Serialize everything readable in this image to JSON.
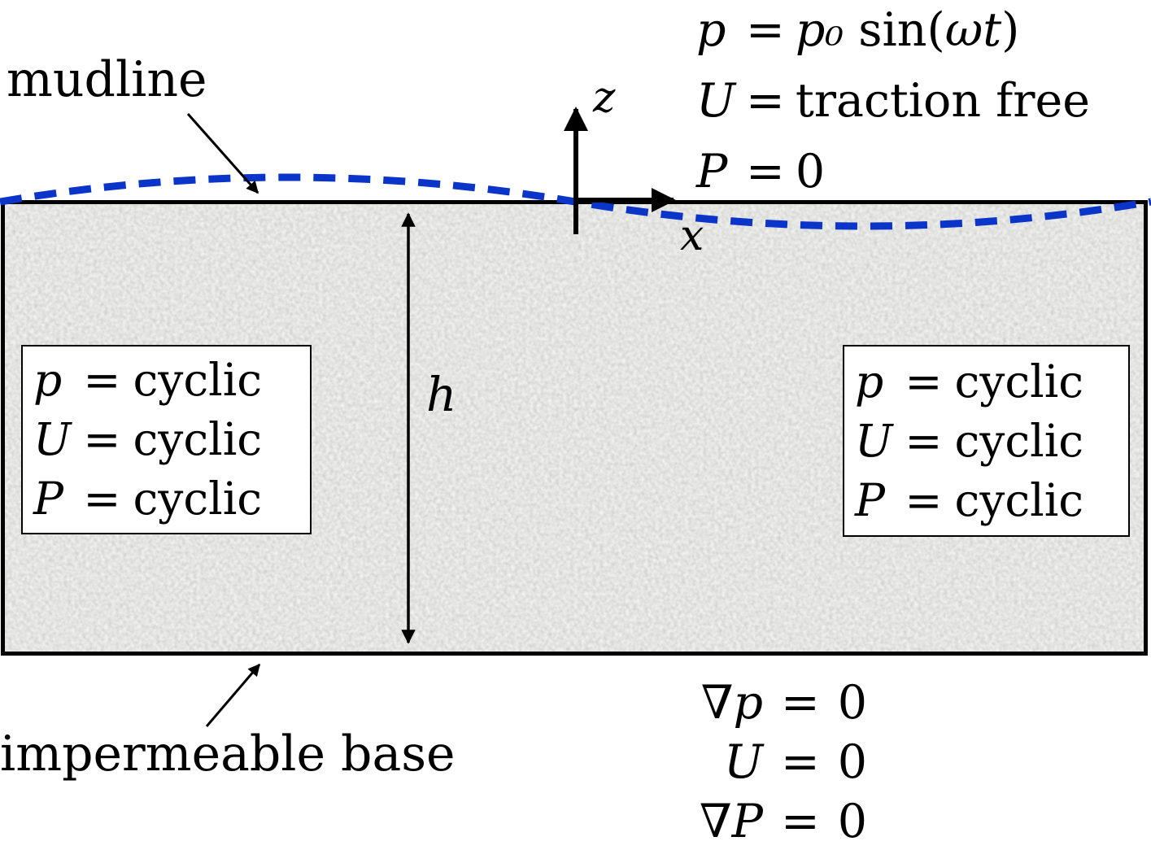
{
  "colors": {
    "wave_blue": "#0b35c9",
    "ink_black": "#000000",
    "sand_gray": "#c9c9c7",
    "box_white": "#ffffff"
  },
  "labels": {
    "mudline": "mudline",
    "impermeable_base": "impermeable base",
    "axis_z": "z",
    "axis_x": "x",
    "depth": "h"
  },
  "surface_bc": {
    "rows": [
      {
        "lhs": [
          {
            "t": "p",
            "i": 1
          }
        ],
        "eq": "=",
        "rhs": [
          {
            "t": "p₀",
            "i": 1
          },
          {
            "t": " sin(",
            "i": 0
          },
          {
            "t": "ωt",
            "i": 1
          },
          {
            "t": ")",
            "i": 0
          }
        ]
      },
      {
        "lhs": [
          {
            "t": "U",
            "i": 1
          }
        ],
        "eq": "=",
        "rhs": [
          {
            "t": "traction free",
            "i": 0
          }
        ]
      },
      {
        "lhs": [
          {
            "t": "P",
            "i": 1
          }
        ],
        "eq": "=",
        "rhs": [
          {
            "t": "0",
            "i": 0
          }
        ]
      }
    ]
  },
  "left_bc": {
    "rows": [
      {
        "lhs": [
          {
            "t": "p",
            "i": 1
          }
        ],
        "eq": "=",
        "rhs": [
          {
            "t": "cyclic",
            "i": 0
          }
        ]
      },
      {
        "lhs": [
          {
            "t": "U",
            "i": 1
          }
        ],
        "eq": "=",
        "rhs": [
          {
            "t": "cyclic",
            "i": 0
          }
        ]
      },
      {
        "lhs": [
          {
            "t": "P",
            "i": 1
          }
        ],
        "eq": "=",
        "rhs": [
          {
            "t": "cyclic",
            "i": 0
          }
        ]
      }
    ]
  },
  "right_bc": {
    "rows": [
      {
        "lhs": [
          {
            "t": "p",
            "i": 1
          }
        ],
        "eq": "=",
        "rhs": [
          {
            "t": "cyclic",
            "i": 0
          }
        ]
      },
      {
        "lhs": [
          {
            "t": "U",
            "i": 1
          }
        ],
        "eq": "=",
        "rhs": [
          {
            "t": "cyclic",
            "i": 0
          }
        ]
      },
      {
        "lhs": [
          {
            "t": "P",
            "i": 1
          }
        ],
        "eq": "=",
        "rhs": [
          {
            "t": "cyclic",
            "i": 0
          }
        ]
      }
    ]
  },
  "base_bc": {
    "rows": [
      {
        "lhs": [
          {
            "t": "∇",
            "i": 0
          },
          {
            "t": "p",
            "i": 1
          }
        ],
        "eq": "=",
        "rhs": [
          {
            "t": "0",
            "i": 0
          }
        ]
      },
      {
        "lhs": [
          {
            "t": "U",
            "i": 1
          }
        ],
        "eq": "=",
        "rhs": [
          {
            "t": "0",
            "i": 0
          }
        ]
      },
      {
        "lhs": [
          {
            "t": "∇",
            "i": 0
          },
          {
            "t": "P",
            "i": 1
          }
        ],
        "eq": "=",
        "rhs": [
          {
            "t": "0",
            "i": 0
          }
        ]
      }
    ]
  }
}
